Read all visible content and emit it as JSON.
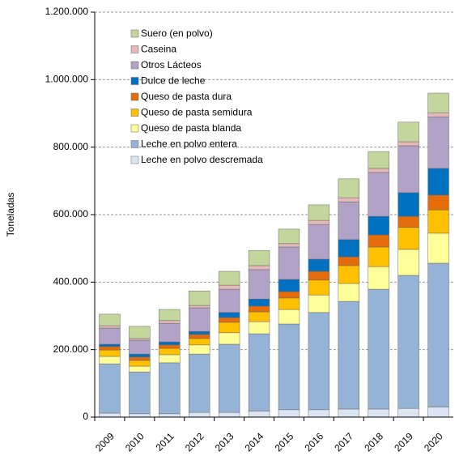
{
  "chart_data": {
    "type": "stacked_bar",
    "y_label": "Toneladas",
    "categories": [
      "2009",
      "2010",
      "2011",
      "2012",
      "2013",
      "2014",
      "2015",
      "2016",
      "2017",
      "2018",
      "2019",
      "2020"
    ],
    "series": [
      {
        "name": "Leche en polvo descremada",
        "color": "#dce6f2",
        "values": [
          12000,
          10000,
          10000,
          14000,
          14000,
          18000,
          22000,
          22000,
          24000,
          24000,
          26000,
          30000
        ]
      },
      {
        "name": "Leche en polvo entera",
        "color": "#95b3d7",
        "values": [
          146000,
          124000,
          151000,
          173000,
          202000,
          229000,
          254000,
          288000,
          319000,
          355000,
          394000,
          426000
        ]
      },
      {
        "name": "Queso de pasta blanda",
        "color": "#ffff99",
        "values": [
          22000,
          17000,
          24000,
          27000,
          34000,
          36000,
          43000,
          52000,
          53000,
          67000,
          77000,
          89000
        ]
      },
      {
        "name": "Queso de pasta semidura",
        "color": "#ffc000",
        "values": [
          19000,
          17000,
          19000,
          19000,
          31000,
          29000,
          34000,
          44000,
          53000,
          58000,
          65000,
          69000
        ]
      },
      {
        "name": "Queso de pasta dura",
        "color": "#e46c0a",
        "values": [
          10000,
          10000,
          10000,
          12000,
          14000,
          17000,
          19000,
          26000,
          26000,
          36000,
          33000,
          44000
        ]
      },
      {
        "name": "Dulce de leche",
        "color": "#0070c0",
        "values": [
          7000,
          9000,
          9000,
          9000,
          15000,
          21000,
          36000,
          36000,
          51000,
          55000,
          70000,
          79000
        ]
      },
      {
        "name": "Otros Lácteos",
        "color": "#b3a2c7",
        "values": [
          48000,
          41000,
          55000,
          70000,
          69000,
          87000,
          96000,
          103000,
          112000,
          130000,
          139000,
          153000
        ]
      },
      {
        "name": "Caseina",
        "color": "#e6b9b8",
        "values": [
          7000,
          5000,
          8000,
          7000,
          12000,
          12000,
          10000,
          12000,
          12000,
          12000,
          12000,
          12000
        ]
      },
      {
        "name": "Suero (en polvo)",
        "color": "#c3d69b",
        "values": [
          34000,
          36000,
          33000,
          43000,
          41000,
          45000,
          43000,
          46000,
          56000,
          50000,
          58000,
          58000
        ]
      }
    ],
    "ylim": [
      0,
      1200000
    ],
    "yticks": [
      0,
      {
        "value": 200000,
        "label": "200.000"
      },
      {
        "value": 400000,
        "label": "400.000"
      },
      {
        "value": 600000,
        "label": "600.000"
      },
      {
        "value": 800000,
        "label": "800.000"
      },
      {
        "value": 1000000,
        "label": "1.000.000"
      },
      {
        "value": 1200000,
        "label": "1.200.000"
      }
    ],
    "grid": true,
    "legend_position": "top-left"
  }
}
